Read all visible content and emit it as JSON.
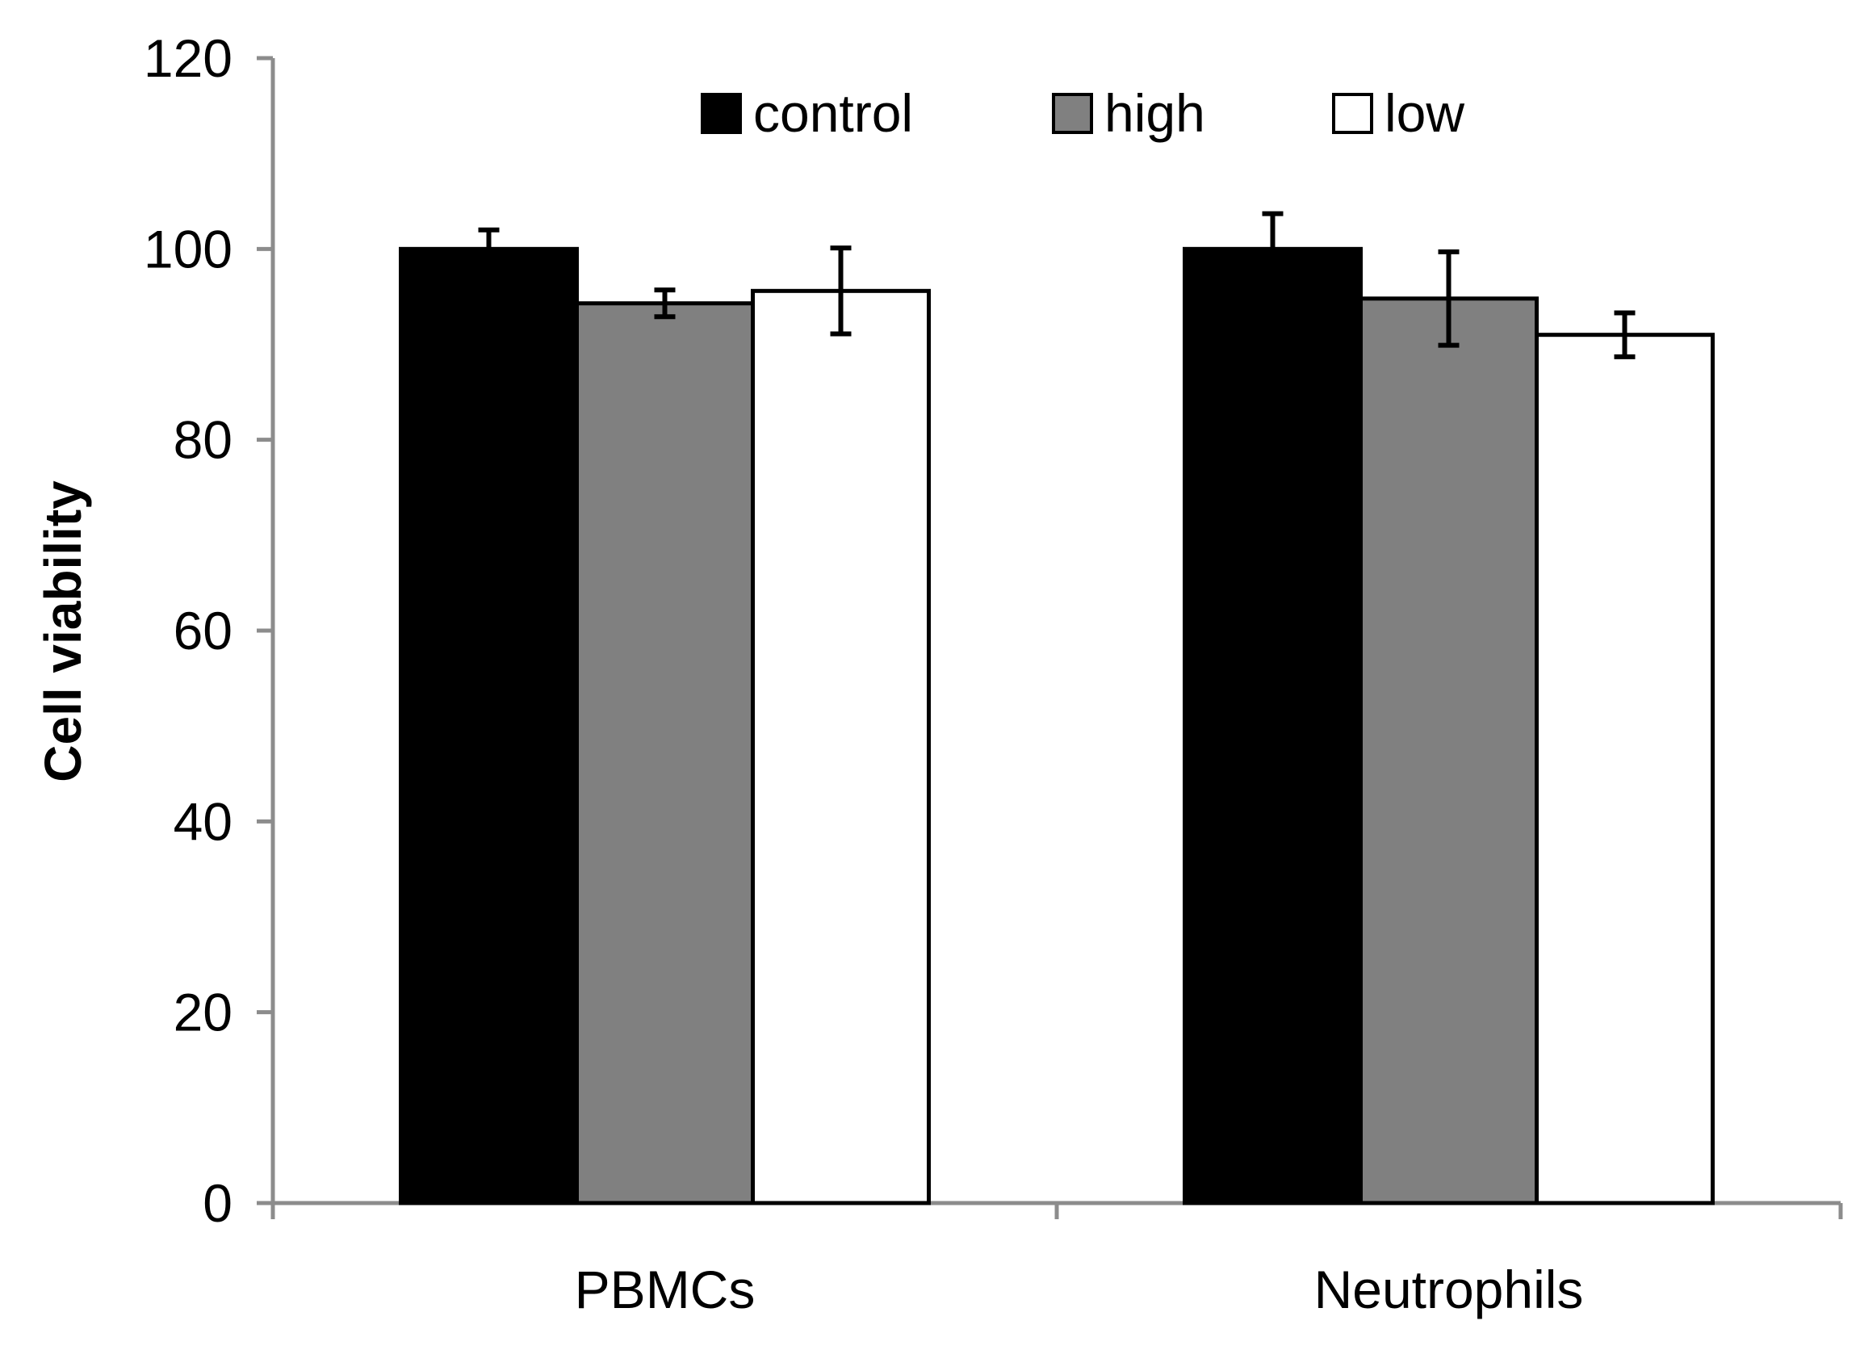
{
  "chart_data": {
    "type": "bar",
    "title": "",
    "xlabel": "",
    "ylabel": "Cell viability",
    "categories": [
      "PBMCs",
      "Neutrophils"
    ],
    "ylim": [
      0,
      120
    ],
    "yticks": [
      0,
      20,
      40,
      60,
      80,
      100,
      120
    ],
    "grid": false,
    "legend_position": "top",
    "series": [
      {
        "name": "control",
        "color": "#000000",
        "values": [
          100,
          100
        ],
        "errors": [
          2,
          3.7
        ]
      },
      {
        "name": "high",
        "color": "#808080",
        "values": [
          94.3,
          94.8
        ],
        "errors": [
          1.4,
          4.9
        ]
      },
      {
        "name": "low",
        "color": "#ffffff",
        "values": [
          95.6,
          91
        ],
        "errors": [
          4.5,
          2.3
        ]
      }
    ]
  }
}
